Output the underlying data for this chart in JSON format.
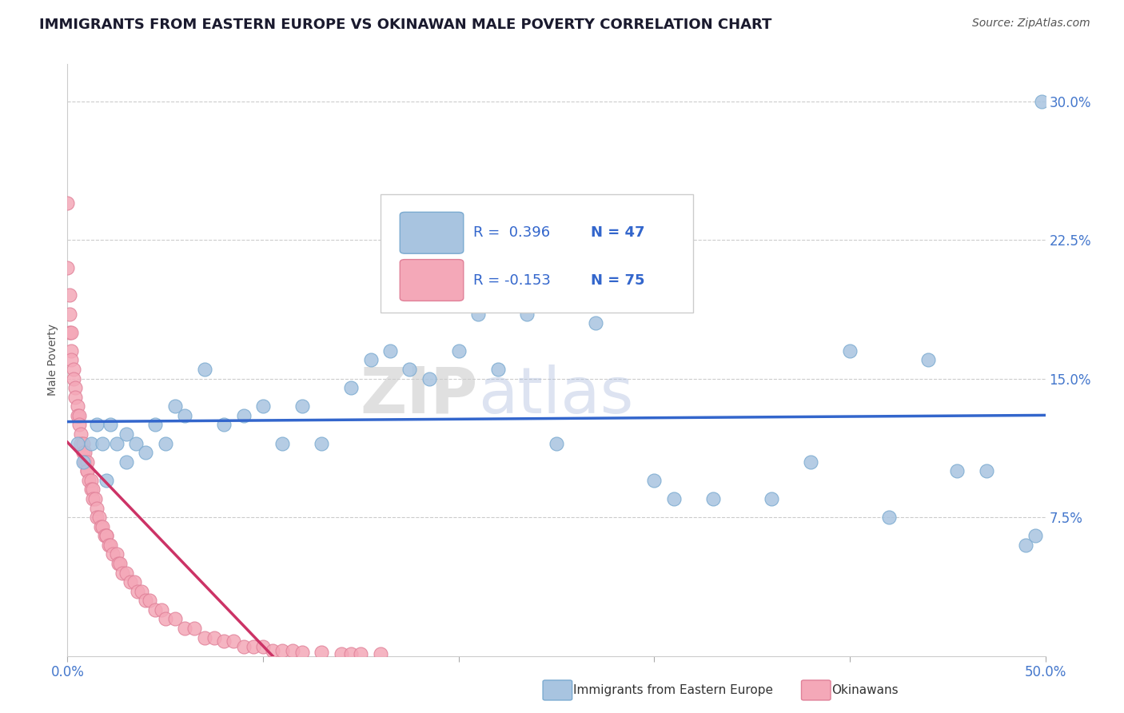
{
  "title": "IMMIGRANTS FROM EASTERN EUROPE VS OKINAWAN MALE POVERTY CORRELATION CHART",
  "source": "Source: ZipAtlas.com",
  "ylabel": "Male Poverty",
  "xlim": [
    0.0,
    0.5
  ],
  "ylim": [
    0.0,
    0.32
  ],
  "ytick_positions": [
    0.075,
    0.15,
    0.225,
    0.3
  ],
  "ytick_labels": [
    "7.5%",
    "15.0%",
    "22.5%",
    "30.0%"
  ],
  "grid_color": "#cccccc",
  "background_color": "#ffffff",
  "watermark": "ZIPatlas",
  "series1_label": "Immigrants from Eastern Europe",
  "series2_label": "Okinawans",
  "series1_color": "#a8c4e0",
  "series2_color": "#f4a8b8",
  "series1_edge": "#7aaad0",
  "series2_edge": "#e08098",
  "trendline1_color": "#3366cc",
  "trendline2_color": "#cc3366",
  "R1": 0.396,
  "N1": 47,
  "R2": -0.153,
  "N2": 75,
  "legend_color": "#3366cc",
  "series1_x": [
    0.005,
    0.008,
    0.012,
    0.015,
    0.018,
    0.02,
    0.022,
    0.025,
    0.03,
    0.03,
    0.035,
    0.04,
    0.045,
    0.05,
    0.055,
    0.06,
    0.07,
    0.08,
    0.09,
    0.1,
    0.11,
    0.12,
    0.13,
    0.145,
    0.155,
    0.165,
    0.175,
    0.185,
    0.2,
    0.21,
    0.22,
    0.235,
    0.25,
    0.27,
    0.3,
    0.31,
    0.33,
    0.36,
    0.38,
    0.4,
    0.42,
    0.44,
    0.455,
    0.47,
    0.49,
    0.495,
    0.498
  ],
  "series1_y": [
    0.115,
    0.105,
    0.115,
    0.125,
    0.115,
    0.095,
    0.125,
    0.115,
    0.12,
    0.105,
    0.115,
    0.11,
    0.125,
    0.115,
    0.135,
    0.13,
    0.155,
    0.125,
    0.13,
    0.135,
    0.115,
    0.135,
    0.115,
    0.145,
    0.16,
    0.165,
    0.155,
    0.15,
    0.165,
    0.185,
    0.155,
    0.185,
    0.115,
    0.18,
    0.095,
    0.085,
    0.085,
    0.085,
    0.105,
    0.165,
    0.075,
    0.16,
    0.1,
    0.1,
    0.06,
    0.065,
    0.3
  ],
  "series2_x": [
    0.0,
    0.0,
    0.001,
    0.001,
    0.001,
    0.002,
    0.002,
    0.002,
    0.003,
    0.003,
    0.004,
    0.004,
    0.005,
    0.005,
    0.006,
    0.006,
    0.007,
    0.007,
    0.008,
    0.008,
    0.009,
    0.009,
    0.01,
    0.01,
    0.01,
    0.011,
    0.012,
    0.012,
    0.013,
    0.013,
    0.014,
    0.015,
    0.015,
    0.016,
    0.017,
    0.018,
    0.019,
    0.02,
    0.02,
    0.021,
    0.022,
    0.023,
    0.025,
    0.026,
    0.027,
    0.028,
    0.03,
    0.032,
    0.034,
    0.036,
    0.038,
    0.04,
    0.042,
    0.045,
    0.048,
    0.05,
    0.055,
    0.06,
    0.065,
    0.07,
    0.075,
    0.08,
    0.085,
    0.09,
    0.095,
    0.1,
    0.105,
    0.11,
    0.115,
    0.12,
    0.13,
    0.14,
    0.145,
    0.15,
    0.16
  ],
  "series2_y": [
    0.245,
    0.21,
    0.195,
    0.185,
    0.175,
    0.175,
    0.165,
    0.16,
    0.155,
    0.15,
    0.145,
    0.14,
    0.135,
    0.13,
    0.13,
    0.125,
    0.12,
    0.115,
    0.115,
    0.11,
    0.11,
    0.105,
    0.105,
    0.1,
    0.1,
    0.095,
    0.095,
    0.09,
    0.09,
    0.085,
    0.085,
    0.08,
    0.075,
    0.075,
    0.07,
    0.07,
    0.065,
    0.065,
    0.065,
    0.06,
    0.06,
    0.055,
    0.055,
    0.05,
    0.05,
    0.045,
    0.045,
    0.04,
    0.04,
    0.035,
    0.035,
    0.03,
    0.03,
    0.025,
    0.025,
    0.02,
    0.02,
    0.015,
    0.015,
    0.01,
    0.01,
    0.008,
    0.008,
    0.005,
    0.005,
    0.005,
    0.003,
    0.003,
    0.003,
    0.002,
    0.002,
    0.001,
    0.001,
    0.001,
    0.001
  ]
}
